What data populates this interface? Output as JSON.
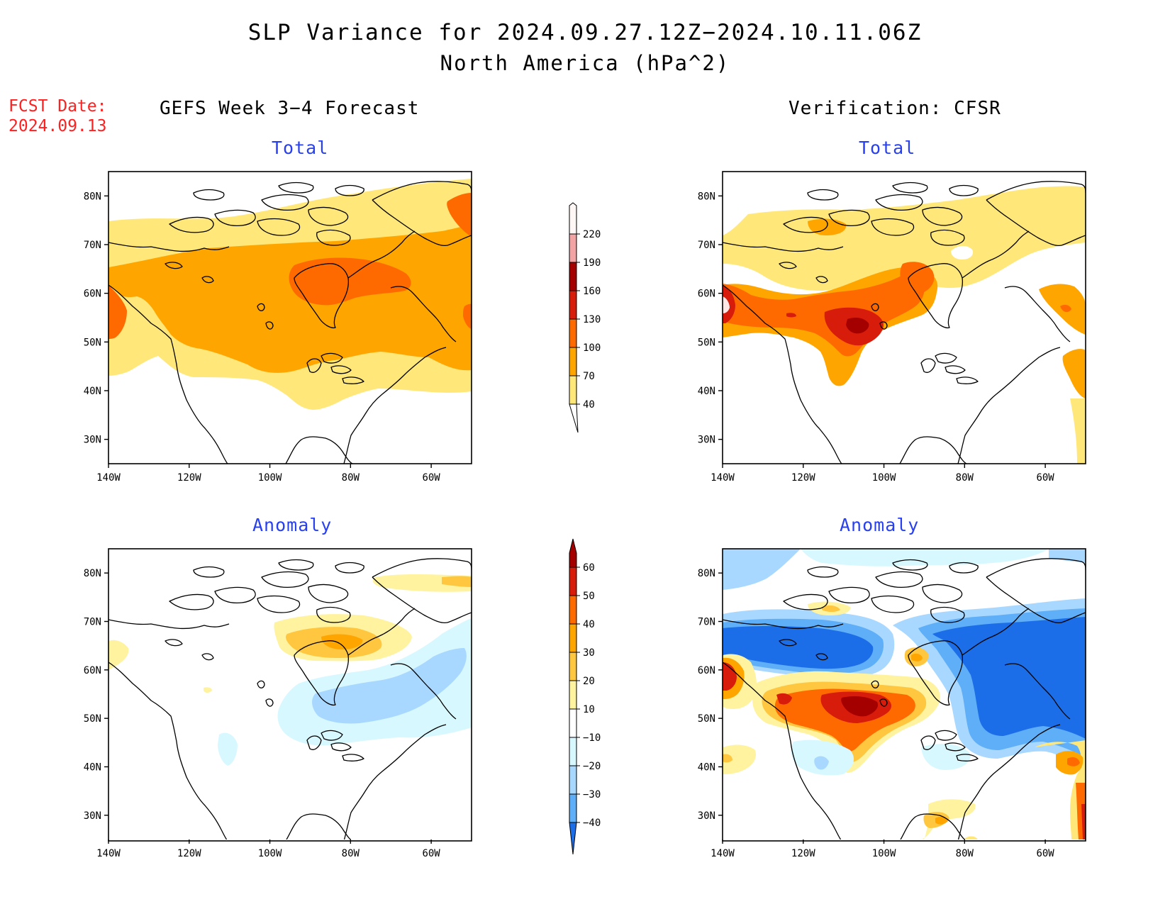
{
  "title": {
    "line1": "SLP Variance for 2024.09.27.12Z−2024.10.11.06Z",
    "line2": "North America (hPa^2)"
  },
  "fcst_date": {
    "label": "FCST Date:",
    "value": "2024.09.13"
  },
  "columns": {
    "left": "GEFS Week 3−4 Forecast",
    "right": "Verification: CFSR"
  },
  "panels": {
    "forecast_total": {
      "title": "Total"
    },
    "verification_total": {
      "title": "Total"
    },
    "forecast_anomaly": {
      "title": "Anomaly"
    },
    "verification_anomaly": {
      "title": "Anomaly"
    }
  },
  "axes": {
    "lat_labels": [
      "80N",
      "70N",
      "60N",
      "50N",
      "40N",
      "30N"
    ],
    "lon_labels": [
      "140W",
      "120W",
      "100W",
      "80W",
      "60W"
    ]
  },
  "colorbars": {
    "total": {
      "labels": [
        "220",
        "190",
        "160",
        "130",
        "100",
        "70",
        "40"
      ],
      "colors": [
        "#fde8e6",
        "#f2a3a3",
        "#a50000",
        "#d81c0c",
        "#ff6a00",
        "#ffa500",
        "#ffe77a"
      ]
    },
    "anomaly": {
      "labels": [
        "60",
        "50",
        "40",
        "30",
        "20",
        "10",
        "−10",
        "−20",
        "−30",
        "−40"
      ],
      "colors": [
        "#a50000",
        "#d81c0c",
        "#ff6a00",
        "#ffa500",
        "#ffc63f",
        "#fff3a0",
        "#ffffff",
        "#d8f8ff",
        "#a8d8ff",
        "#5eaef8",
        "#1c6ee8",
        "#0a4ecc"
      ]
    }
  },
  "palette": {
    "yellow": "#ffe77a",
    "orange": "#ffa500",
    "dark_orange": "#ff6a00",
    "red": "#d81c0c",
    "dark_red": "#a50000",
    "light_cyan": "#d8f8ff",
    "light_blue": "#a8d8ff",
    "blue": "#1c6ee8",
    "title_blue": "#2840f0",
    "fcst_red": "#ff2020"
  }
}
